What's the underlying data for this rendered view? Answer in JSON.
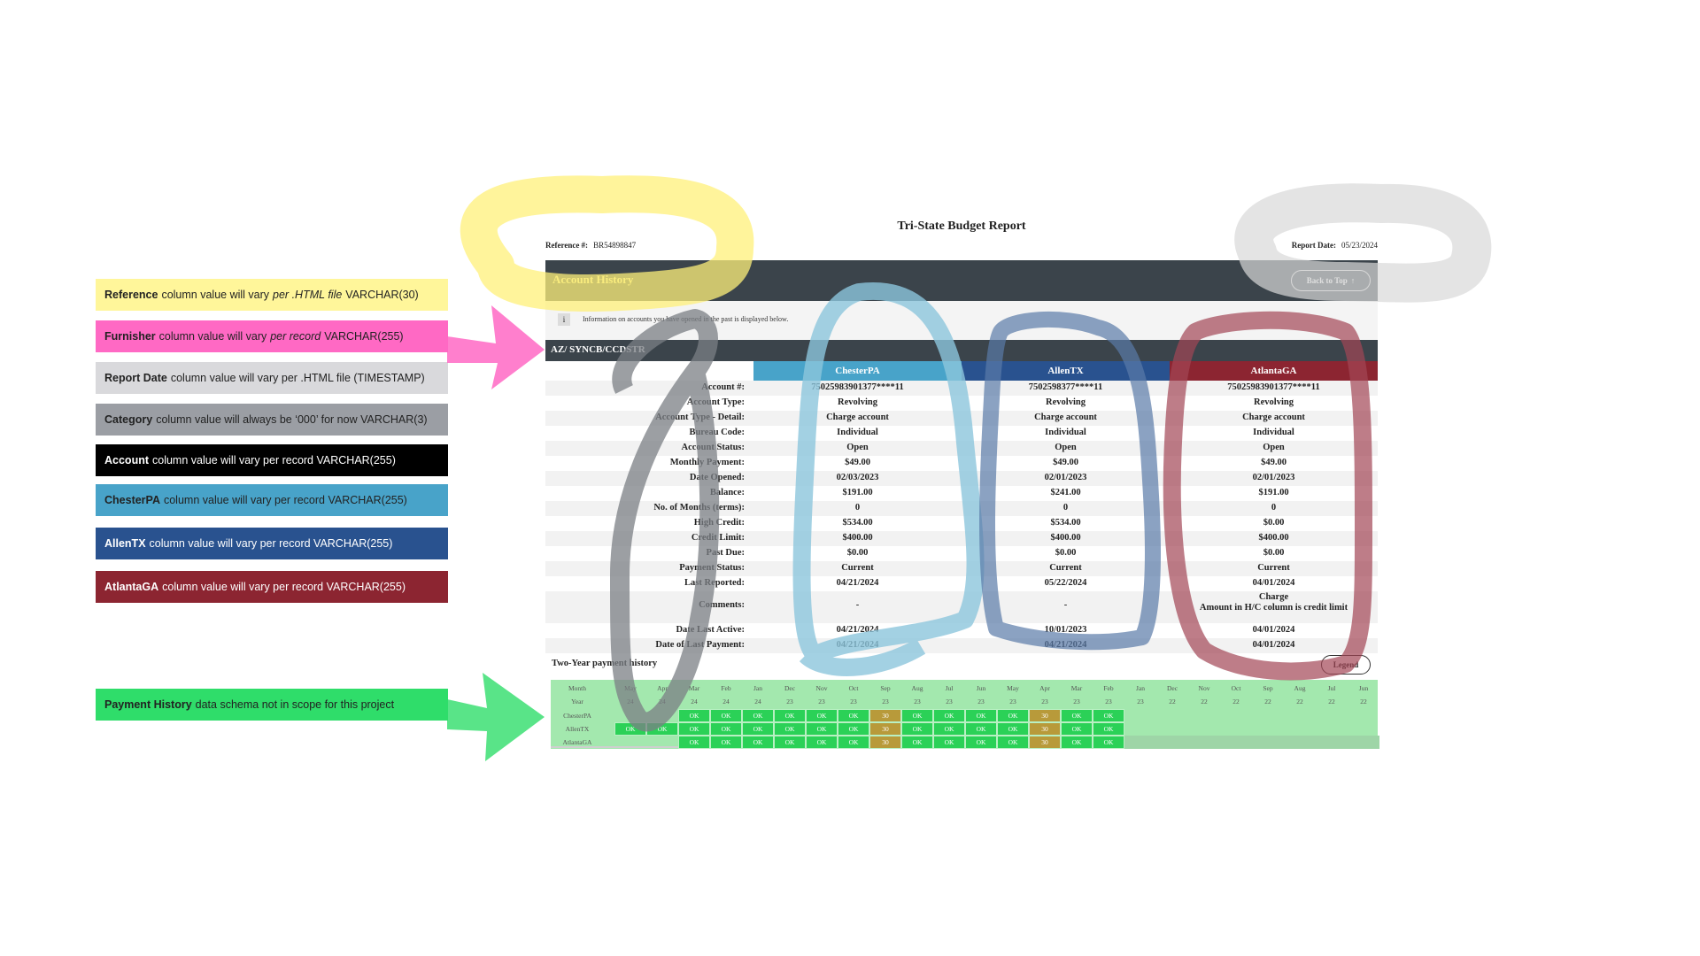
{
  "notes": [
    {
      "bold": "Reference",
      "pre": "column value will vary",
      "em": "per .HTML file",
      "post": "VARCHAR(30)",
      "bg": "#fff69a",
      "fg": "#222"
    },
    {
      "bold": "Furnisher",
      "pre": "column value will vary",
      "em": "per record",
      "post": "VARCHAR(255)",
      "bg": "#ff69c4",
      "fg": "#222"
    },
    {
      "bold": "Report Date",
      "pre": "column value will vary per .HTML file (TIMESTAMP)",
      "em": "",
      "post": "",
      "bg": "#d9d9dc",
      "fg": "#222"
    },
    {
      "bold": "Category",
      "pre": "column value will always be ‘000’ for now  VARCHAR(3)",
      "em": "",
      "post": "",
      "bg": "#9b9ea4",
      "fg": "#222"
    },
    {
      "bold": "Account",
      "pre": "column value will vary per record VARCHAR(255)",
      "em": "",
      "post": "",
      "bg": "#000000",
      "fg": "#ffffff"
    },
    {
      "bold": "ChesterPA",
      "pre": "column value will vary per record VARCHAR(255)",
      "em": "",
      "post": "",
      "bg": "#48a3c9",
      "fg": "#222"
    },
    {
      "bold": "AllenTX",
      "pre": "column value will vary per record VARCHAR(255)",
      "em": "",
      "post": "",
      "bg": "#29528f",
      "fg": "#ffffff"
    },
    {
      "bold": "AtlantaGA",
      "pre": "column value will vary per record VARCHAR(255)",
      "em": "",
      "post": "",
      "bg": "#8c2531",
      "fg": "#ffffff"
    },
    {
      "bold": "Payment History",
      "pre": "data schema not in scope for this project",
      "em": "",
      "post": "",
      "bg": "#2fdd6a",
      "fg": "#222"
    }
  ],
  "report": {
    "title": "Tri-State Budget Report",
    "reference_label": "Reference #:",
    "reference_value": "BR54898847",
    "date_label": "Report Date:",
    "date_value": "05/23/2024",
    "section_title": "Account History",
    "back_to_top": "Back to Top",
    "info_icon": "i",
    "info_text": "Information on accounts you have opened in the past is displayed below.",
    "category": "AZ/ SYNCB/CCDSTR",
    "furnishers": [
      {
        "name": "ChesterPA",
        "color": "#48a3c9"
      },
      {
        "name": "AllenTX",
        "color": "#29528f"
      },
      {
        "name": "AtlantaGA",
        "color": "#8c2531"
      }
    ],
    "rows": [
      {
        "label": "Account #:",
        "values": [
          "75025983901377****11",
          "7502598377****11",
          "75025983901377****11"
        ]
      },
      {
        "label": "Account Type:",
        "values": [
          "Revolving",
          "Revolving",
          "Revolving"
        ]
      },
      {
        "label": "Account Type - Detail:",
        "values": [
          "Charge account",
          "Charge account",
          "Charge account"
        ]
      },
      {
        "label": "Bureau Code:",
        "values": [
          "Individual",
          "Individual",
          "Individual"
        ]
      },
      {
        "label": "Account Status:",
        "values": [
          "Open",
          "Open",
          "Open"
        ]
      },
      {
        "label": "Monthly Payment:",
        "values": [
          "$49.00",
          "$49.00",
          "$49.00"
        ]
      },
      {
        "label": "Date Opened:",
        "values": [
          "02/03/2023",
          "02/01/2023",
          "02/01/2023"
        ]
      },
      {
        "label": "Balance:",
        "values": [
          "$191.00",
          "$241.00",
          "$191.00"
        ]
      },
      {
        "label": "No. of Months (terms):",
        "values": [
          "0",
          "0",
          "0"
        ]
      },
      {
        "label": "High Credit:",
        "values": [
          "$534.00",
          "$534.00",
          "$0.00"
        ]
      },
      {
        "label": "Credit Limit:",
        "values": [
          "$400.00",
          "$400.00",
          "$400.00"
        ]
      },
      {
        "label": "Past Due:",
        "values": [
          "$0.00",
          "$0.00",
          "$0.00"
        ]
      },
      {
        "label": "Payment Status:",
        "values": [
          "Current",
          "Current",
          "Current"
        ]
      },
      {
        "label": "Last Reported:",
        "values": [
          "04/21/2024",
          "05/22/2024",
          "04/01/2024"
        ]
      },
      {
        "label": "Comments:",
        "values": [
          "-",
          "-",
          "Charge\nAmount in H/C column is credit limit"
        ]
      },
      {
        "label": "Date Last Active:",
        "values": [
          "04/21/2024",
          "10/01/2023",
          "04/01/2024"
        ]
      },
      {
        "label": "Date of Last Payment:",
        "values": [
          "04/21/2024",
          "04/21/2024",
          "04/01/2024"
        ]
      }
    ],
    "payment_history": {
      "title": "Two-Year payment history",
      "legend_button": "Legend",
      "month_label": "Month",
      "year_label": "Year",
      "months": [
        "May",
        "Apr",
        "Mar",
        "Feb",
        "Jan",
        "Dec",
        "Nov",
        "Oct",
        "Sep",
        "Aug",
        "Jul",
        "Jun",
        "May",
        "Apr",
        "Mar",
        "Feb",
        "Jan",
        "Dec",
        "Nov",
        "Oct",
        "Sep",
        "Aug",
        "Jul",
        "Jun"
      ],
      "years": [
        "24",
        "24",
        "24",
        "24",
        "24",
        "23",
        "23",
        "23",
        "23",
        "23",
        "23",
        "23",
        "23",
        "23",
        "23",
        "23",
        "23",
        "22",
        "22",
        "22",
        "22",
        "22",
        "22",
        "22"
      ],
      "rows": [
        {
          "name": "ChesterPA",
          "cells": [
            "",
            "",
            "OK",
            "OK",
            "OK",
            "OK",
            "OK",
            "OK",
            "30",
            "OK",
            "OK",
            "OK",
            "OK",
            "30",
            "OK",
            "OK",
            "",
            "",
            "",
            "",
            "",
            "",
            "",
            ""
          ]
        },
        {
          "name": "AllenTX",
          "cells": [
            "OK",
            "OK",
            "OK",
            "OK",
            "OK",
            "OK",
            "OK",
            "OK",
            "30",
            "OK",
            "OK",
            "OK",
            "OK",
            "30",
            "OK",
            "OK",
            "",
            "",
            "",
            "",
            "",
            "",
            "",
            ""
          ]
        },
        {
          "name": "AtlantaGA",
          "cells": [
            "",
            "",
            "OK",
            "OK",
            "OK",
            "OK",
            "OK",
            "OK",
            "30",
            "OK",
            "OK",
            "OK",
            "OK",
            "30",
            "OK",
            "OK",
            "",
            "",
            "",
            "",
            "",
            "",
            "",
            ""
          ]
        }
      ]
    }
  }
}
